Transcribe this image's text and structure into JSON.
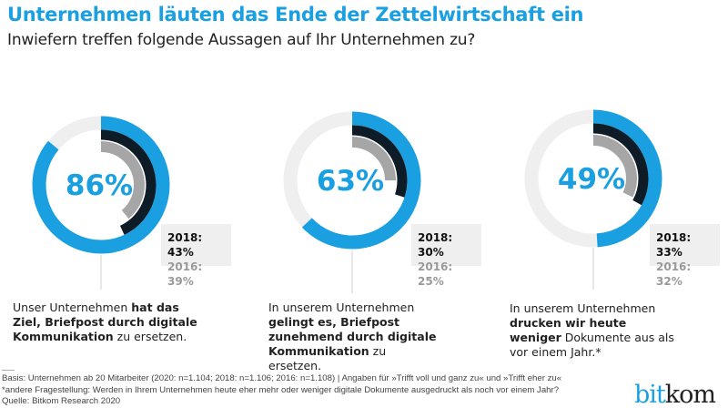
{
  "title": "Unternehmen läuten das Ende der Zettelwirtschaft ein",
  "subtitle": "Inwiefern treffen folgende Aussagen auf Ihr Unternehmen zu?",
  "colors": {
    "y2020": "#1a9fe0",
    "y2018": "#0d1c26",
    "y2016": "#a6a6a6",
    "track": "#efefef"
  },
  "chart_data": {
    "type": "pie",
    "subtype": "radial-donut",
    "series_names": [
      "2020",
      "2018",
      "2016"
    ],
    "items": [
      {
        "value_2020": 86,
        "label_2020": "86%",
        "label_2018": "2018: 43%",
        "value_2018": 43,
        "label_2016": "2016: 39%",
        "value_2016": 39,
        "desc_pre": "Unser Unternehmen ",
        "desc_bold": "hat das Ziel, Briefpost durch digitale Kommunikation",
        "desc_post": " zu ersetzen."
      },
      {
        "value_2020": 63,
        "label_2020": "63%",
        "label_2018": "2018: 30%",
        "value_2018": 30,
        "label_2016": "2016: 25%",
        "value_2016": 25,
        "desc_pre": "In unserem Unternehmen ",
        "desc_bold": "gelingt es, Briefpost zunehmend durch digitale Kommunikation",
        "desc_post": " zu ersetzen."
      },
      {
        "value_2020": 49,
        "label_2020": "49%",
        "label_2018": "2018: 33%",
        "value_2018": 33,
        "label_2016": "2016: 32%",
        "value_2016": 32,
        "desc_pre": "In unserem Unternehmen ",
        "desc_bold": "drucken wir heute weniger",
        "desc_post": " Dokumente aus als vor einem Jahr.*"
      }
    ]
  },
  "footer": {
    "basis": "Basis: Unternehmen ab 20 Mitarbeiter (2020: n=1.104; 2018: n=1.106; 2016: n=1.108) | Angaben für »Trifft voll und ganz zu« und »Trifft eher zu«",
    "note": "*andere Fragestellung: Werden in Ihrem Unternehmen heute eher mehr oder weniger digitale Dokumente ausgedruckt als noch vor einem Jahr?",
    "source": "Quelle: Bitkom Research 2020"
  },
  "logo": {
    "part1": "bit",
    "part2": "kom"
  }
}
